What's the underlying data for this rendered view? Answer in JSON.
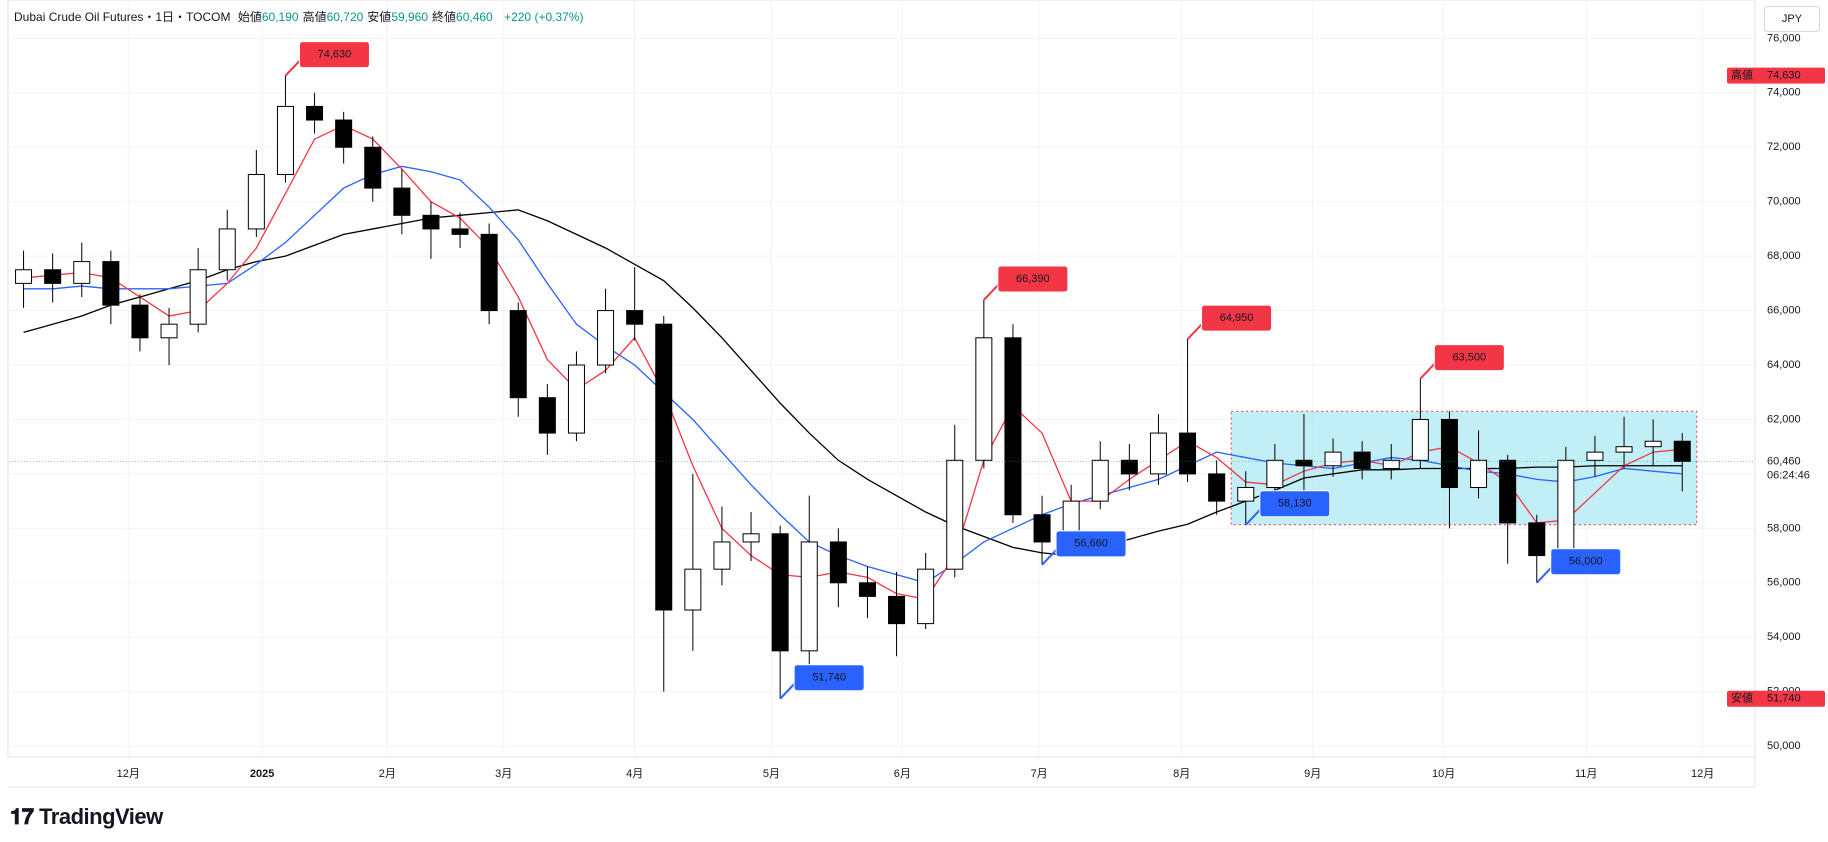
{
  "chart_data": {
    "type": "candlestick",
    "header": {
      "symbol": "Dubai Crude Oil Futures・1日・TOCOM",
      "fields": [
        {
          "label": "始値",
          "value": "60,190"
        },
        {
          "label": "高値",
          "value": "60,720"
        },
        {
          "label": "安値",
          "value": "59,960"
        },
        {
          "label": "終値",
          "value": "60,460"
        }
      ],
      "change": "+220 (+0.37%)"
    },
    "currency": "JPY",
    "xlim": [
      0,
      60
    ],
    "xticks": [
      {
        "value": 4.1,
        "label": "12月"
      },
      {
        "value": 8.7,
        "label": "2025"
      },
      {
        "value": 13.0,
        "label": "2月"
      },
      {
        "value": 17.0,
        "label": "3月"
      },
      {
        "value": 21.5,
        "label": "4月"
      },
      {
        "value": 26.2,
        "label": "5月"
      },
      {
        "value": 30.7,
        "label": "6月"
      },
      {
        "value": 35.4,
        "label": "7月"
      },
      {
        "value": 40.3,
        "label": "8月"
      },
      {
        "value": 44.8,
        "label": "9月"
      },
      {
        "value": 49.3,
        "label": "10月"
      },
      {
        "value": 54.2,
        "label": "11月"
      },
      {
        "value": 58.2,
        "label": "12月"
      }
    ],
    "ylim": [
      49600,
      77410
    ],
    "yticks": [
      {
        "value": 50000,
        "label": "50,000"
      },
      {
        "value": 52000,
        "label": "52,000"
      },
      {
        "value": 54000,
        "label": "54,000"
      },
      {
        "value": 56000,
        "label": "56,000"
      },
      {
        "value": 58000,
        "label": "58,000"
      },
      {
        "value": 60000,
        "label": "60,000"
      },
      {
        "value": 62000,
        "label": "62,000"
      },
      {
        "value": 64000,
        "label": "64,000"
      },
      {
        "value": 66000,
        "label": "66,000"
      },
      {
        "value": 68000,
        "label": "68,000"
      },
      {
        "value": 70000,
        "label": "70,000"
      },
      {
        "value": 72000,
        "label": "72,000"
      },
      {
        "value": 74000,
        "label": "74,000"
      },
      {
        "value": 76000,
        "label": "76,000"
      }
    ],
    "grid": true,
    "candles": {
      "open": [
        67000,
        67500,
        67000,
        67800,
        66200,
        65000,
        65500,
        67500,
        69000,
        71000,
        73500,
        73000,
        72000,
        70500,
        69500,
        69000,
        68800,
        66000,
        62800,
        61500,
        64000,
        66000,
        65500,
        55000,
        56500,
        57500,
        57800,
        53500,
        57500,
        56000,
        55500,
        54500,
        56500,
        60500,
        65000,
        58500,
        57500,
        59000,
        60500,
        60000,
        61500,
        60000,
        59000,
        59500,
        60500,
        60300,
        60800,
        60200,
        60500,
        62000,
        59500,
        60500,
        58200,
        57000,
        60500,
        60800,
        61000,
        61200
      ],
      "high": [
        68200,
        68100,
        68500,
        68200,
        66600,
        66100,
        68300,
        69700,
        71900,
        74630,
        74000,
        73300,
        72400,
        71200,
        70000,
        69600,
        69200,
        66300,
        63300,
        64500,
        66800,
        67600,
        65800,
        60000,
        58800,
        58600,
        58100,
        59200,
        58000,
        56600,
        56400,
        57100,
        61800,
        66390,
        65500,
        59200,
        59600,
        61200,
        61100,
        62200,
        64950,
        60500,
        60100,
        61100,
        62200,
        61300,
        61200,
        61100,
        63500,
        62300,
        61600,
        60700,
        58500,
        61000,
        61400,
        62100,
        62000,
        61500
      ],
      "low": [
        66100,
        66300,
        66500,
        65500,
        64500,
        64000,
        65200,
        67100,
        68700,
        70700,
        72500,
        71400,
        70000,
        68800,
        67900,
        68300,
        65500,
        62100,
        60700,
        61200,
        63700,
        64900,
        52000,
        53500,
        55900,
        56800,
        51740,
        52700,
        55100,
        54700,
        53300,
        54300,
        56200,
        60200,
        58200,
        56660,
        57200,
        58700,
        59400,
        59600,
        59700,
        58500,
        58130,
        59200,
        58600,
        59900,
        59800,
        59800,
        60200,
        58000,
        59100,
        56700,
        56000,
        56700,
        59900,
        60200,
        60300,
        59360
      ],
      "close": [
        67500,
        67000,
        67800,
        66200,
        65000,
        65500,
        67500,
        69000,
        71000,
        73500,
        73000,
        72000,
        70500,
        69500,
        69000,
        68800,
        66000,
        62800,
        61500,
        64000,
        66000,
        65500,
        55000,
        56500,
        57500,
        57800,
        53500,
        57500,
        56000,
        55500,
        54500,
        56500,
        60500,
        65000,
        58500,
        57500,
        59000,
        60500,
        60000,
        61500,
        60000,
        59000,
        59500,
        60500,
        60300,
        60800,
        60200,
        60500,
        62000,
        59500,
        60500,
        58200,
        57000,
        60500,
        60800,
        61000,
        61200,
        60460
      ]
    },
    "series": [
      {
        "color": "#000000",
        "values": [
          65200,
          65500,
          65800,
          66200,
          66500,
          66800,
          67100,
          67500,
          67800,
          68000,
          68400,
          68800,
          69000,
          69200,
          69400,
          69500,
          69600,
          69700,
          69300,
          68800,
          68300,
          67700,
          67100,
          66100,
          65000,
          63800,
          62600,
          61500,
          60500,
          59800,
          59200,
          58600,
          58100,
          57700,
          57300,
          57100,
          57000,
          57300,
          57600,
          57900,
          58150,
          58600,
          59000,
          59400,
          59850,
          60000,
          60150,
          60150,
          60200,
          60200,
          60200,
          60200,
          60250,
          60250,
          60300,
          60300,
          60300,
          60300
        ]
      },
      {
        "color": "#2962ff",
        "values": [
          66800,
          66800,
          66900,
          66800,
          66800,
          66800,
          66900,
          67000,
          67700,
          68500,
          69500,
          70500,
          71000,
          71300,
          71100,
          70800,
          69800,
          68600,
          67000,
          65500,
          64700,
          64000,
          63000,
          62000,
          60800,
          59600,
          58500,
          57500,
          57000,
          56600,
          56300,
          56000,
          56700,
          57500,
          58000,
          58500,
          58900,
          59200,
          59500,
          59800,
          60300,
          60800,
          60600,
          60400,
          60300,
          60200,
          60400,
          60600,
          60500,
          60300,
          60100,
          60000,
          59800,
          59700,
          59900,
          60200,
          60100,
          60000
        ]
      },
      {
        "color": "#f23645",
        "values": [
          67200,
          67300,
          67400,
          67200,
          66500,
          65800,
          66000,
          67000,
          68300,
          70300,
          72300,
          72800,
          72300,
          71200,
          70000,
          69400,
          68300,
          66500,
          64200,
          63100,
          63800,
          65000,
          63000,
          60300,
          58000,
          57000,
          56300,
          56200,
          56400,
          56200,
          55600,
          55400,
          57000,
          60500,
          62500,
          61500,
          59000,
          59000,
          59800,
          60500,
          61200,
          60600,
          59700,
          59600,
          60100,
          60400,
          60500,
          60300,
          60800,
          61000,
          60400,
          59700,
          58200,
          58300,
          59300,
          60300,
          60800,
          60900
        ]
      }
    ],
    "range_box": {
      "x": [
        42,
        58
      ],
      "y": [
        58130,
        62300
      ],
      "color": "#b2ebf2"
    },
    "annotations": [
      {
        "kind": "high",
        "label": {
          "value": 74630,
          "label": "74,630"
        }
      },
      {
        "kind": "high",
        "label": {
          "value": 66390,
          "label": "66,390"
        }
      },
      {
        "kind": "high",
        "label": {
          "value": 64950,
          "label": "64,950"
        }
      },
      {
        "kind": "high",
        "label": {
          "value": 63500,
          "label": "63,500"
        }
      },
      {
        "kind": "low",
        "label": {
          "value": 51740,
          "label": "51,740"
        }
      },
      {
        "kind": "low",
        "label": {
          "value": 56660,
          "label": "56,660"
        }
      },
      {
        "kind": "low",
        "label": {
          "value": 58130,
          "label": "58,130"
        }
      },
      {
        "kind": "low",
        "label": {
          "value": 56000,
          "label": "56,000"
        }
      }
    ],
    "high_tag": {
      "label": "高値",
      "value": {
        "value": 74630,
        "label": "74,630"
      }
    },
    "low_tag": {
      "label": "安値",
      "value": {
        "value": 51740,
        "label": "51,740"
      }
    },
    "last": {
      "value": 60460,
      "label": "60,460"
    },
    "countdown": "06:24:46",
    "brand": "TradingView"
  }
}
